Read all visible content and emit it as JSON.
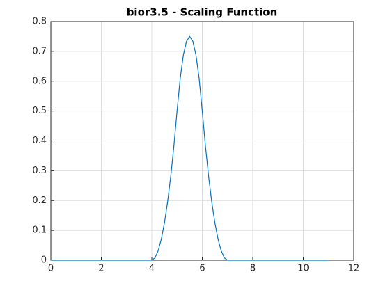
{
  "chart_data": {
    "type": "line",
    "title": "bior3.5 - Scaling Function",
    "x": [
      0,
      4,
      4.125,
      4.25,
      4.375,
      4.5,
      4.625,
      4.75,
      4.875,
      5,
      5.125,
      5.25,
      5.375,
      5.5,
      5.625,
      5.75,
      5.875,
      6,
      6.125,
      6.25,
      6.375,
      6.5,
      6.625,
      6.75,
      6.875,
      7,
      11
    ],
    "series": [
      {
        "color": "#0072bd",
        "values": [
          0,
          0,
          0.0078125,
          0.03125,
          0.0703125,
          0.125,
          0.1953125,
          0.28125,
          0.3828125,
          0.5,
          0.609375,
          0.6875,
          0.734375,
          0.75,
          0.734375,
          0.6875,
          0.609375,
          0.5,
          0.3828125,
          0.28125,
          0.1953125,
          0.125,
          0.0703125,
          0.03125,
          0.0078125,
          0,
          0
        ]
      }
    ],
    "xlim": [
      0,
      12
    ],
    "xticks": [
      0,
      2,
      4,
      6,
      8,
      10,
      12
    ],
    "ylim": [
      0,
      0.8
    ],
    "yticks": [
      0,
      0.1,
      0.2,
      0.3,
      0.4,
      0.5,
      0.6,
      0.7,
      0.8
    ],
    "grid": true
  }
}
